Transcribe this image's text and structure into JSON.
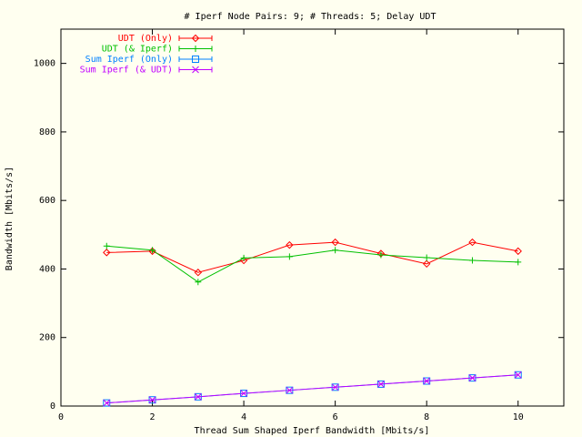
{
  "chart_data": {
    "type": "line",
    "title": "# Iperf Node Pairs: 9; # Threads: 5; Delay UDT",
    "xlabel": "Thread Sum Shaped Iperf Bandwidth [Mbits/s]",
    "ylabel": "Bandwidth [Mbits/s]",
    "xlim": [
      0,
      11
    ],
    "ylim": [
      0,
      1100
    ],
    "x_ticks": [
      "0",
      "2",
      "4",
      "6",
      "8",
      "10"
    ],
    "y_ticks": [
      "0",
      "200",
      "400",
      "600",
      "800",
      "1000"
    ],
    "legend_position": "top-left",
    "x": [
      1,
      2,
      3,
      4,
      5,
      6,
      7,
      8,
      9,
      10
    ],
    "series": [
      {
        "name": "UDT (Only)",
        "color": "#ff0000",
        "marker": "diamond",
        "values": [
          448,
          452,
          390,
          425,
          470,
          478,
          445,
          415,
          478,
          452
        ]
      },
      {
        "name": "UDT (& Iperf)",
        "color": "#00c000",
        "marker": "plus",
        "values": [
          467,
          455,
          362,
          432,
          436,
          455,
          441,
          433,
          425,
          420
        ]
      },
      {
        "name": "Sum Iperf (Only)",
        "color": "#0080ff",
        "marker": "square",
        "values": [
          9,
          18,
          27,
          37,
          46,
          55,
          64,
          73,
          82,
          91
        ]
      },
      {
        "name": "Sum Iperf (& UDT)",
        "color": "#c000ff",
        "marker": "cross",
        "values": [
          9,
          18,
          27,
          37,
          46,
          55,
          64,
          73,
          82,
          91
        ]
      }
    ]
  }
}
